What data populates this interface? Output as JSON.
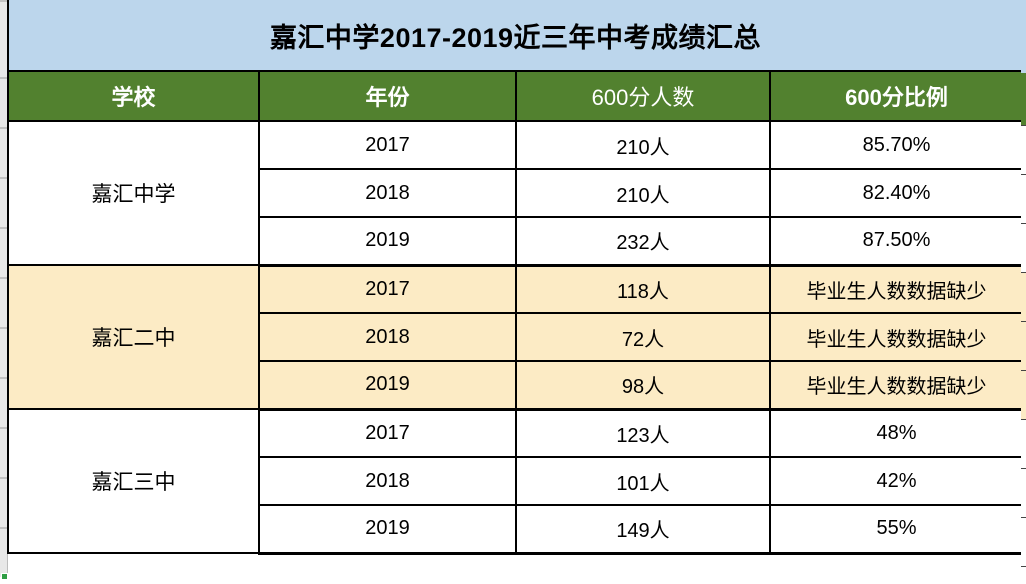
{
  "title": "嘉汇中学2017-2019近三年中考成绩汇总",
  "columns": [
    "学校",
    "年份",
    "600分人数",
    "600分比例"
  ],
  "sections": [
    {
      "school": "嘉汇中学",
      "rows": [
        [
          "2017",
          "210人",
          "85.70%"
        ],
        [
          "2018",
          "210人",
          "82.40%"
        ],
        [
          "2019",
          "232人",
          "87.50%"
        ]
      ]
    },
    {
      "school": "嘉汇二中",
      "rows": [
        [
          "2017",
          "118人",
          "毕业生人数数据缺少"
        ],
        [
          "2018",
          "72人",
          "毕业生人数数据缺少"
        ],
        [
          "2019",
          "98人",
          "毕业生人数数据缺少"
        ]
      ]
    },
    {
      "school": "嘉汇三中",
      "rows": [
        [
          "2017",
          "123人",
          "48%"
        ],
        [
          "2018",
          "101人",
          "42%"
        ],
        [
          "2019",
          "149人",
          "55%"
        ]
      ]
    }
  ],
  "colors": {
    "title_bg": "#BCD6EC",
    "header_bg": "#52812F",
    "header_text": "#FFFFFF",
    "row_bg": "#FFFFFF",
    "accent_row_bg": "#FCEBC5",
    "border": "#000000",
    "text": "#000000",
    "gutter_bg": "#E8E8E8",
    "fill_handle": "#2F9E44"
  },
  "chart_data": {
    "type": "table",
    "title": "嘉汇中学2017-2019近三年中考成绩汇总",
    "categories": [
      "学校",
      "年份",
      "600分人数",
      "600分比例"
    ],
    "series": [
      {
        "name": "嘉汇中学",
        "values": [
          [
            "2017",
            210,
            "85.70%"
          ],
          [
            "2018",
            210,
            "82.40%"
          ],
          [
            "2019",
            232,
            "87.50%"
          ]
        ]
      },
      {
        "name": "嘉汇二中",
        "values": [
          [
            "2017",
            118,
            "毕业生人数数据缺少"
          ],
          [
            "2018",
            72,
            "毕业生人数数据缺少"
          ],
          [
            "2019",
            98,
            "毕业生人数数据缺少"
          ]
        ]
      },
      {
        "name": "嘉汇三中",
        "values": [
          [
            "2017",
            123,
            "48%"
          ],
          [
            "2018",
            101,
            "42%"
          ],
          [
            "2019",
            149,
            "55%"
          ]
        ]
      }
    ]
  }
}
